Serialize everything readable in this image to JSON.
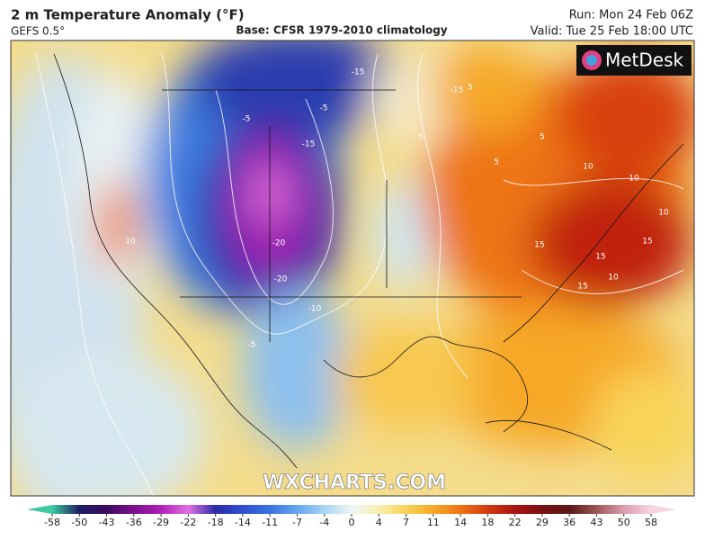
{
  "header": {
    "title": "2 m Temperature Anomaly (°F)",
    "model": "GEFS 0.5°",
    "base": "Base: CFSR 1979-2010 climatology",
    "run": "Run: Mon 24 Feb 06Z",
    "valid": "Valid: Tue 25 Feb 18:00 UTC"
  },
  "logo": "MetDesk",
  "watermark": "WXCHARTS.COM",
  "contour_labels": [
    -15,
    -5,
    -15,
    -5,
    -15,
    -20,
    -20,
    -10,
    -5,
    5,
    5,
    5,
    5,
    10,
    10,
    10,
    15,
    15,
    15,
    15,
    10,
    10
  ],
  "colorbar": {
    "ticks": [
      -58,
      -50,
      -43,
      -36,
      -29,
      -22,
      -18,
      -14,
      -11,
      -7,
      -4,
      0,
      4,
      7,
      11,
      14,
      18,
      22,
      29,
      36,
      43,
      50,
      58
    ],
    "colors": [
      "#3ec9a0",
      "#1c1c60",
      "#3a0a5c",
      "#7a108c",
      "#b020b8",
      "#e070e0",
      "#2a2aa8",
      "#3050d0",
      "#3a74e0",
      "#64a6f0",
      "#a8d4f2",
      "#eef6f6",
      "#f8eeb0",
      "#f8d458",
      "#f6a828",
      "#ee7414",
      "#d23a10",
      "#a81414",
      "#781010",
      "#5a1818",
      "#9c5858",
      "#dc9cb0",
      "#f8d4e2"
    ]
  }
}
